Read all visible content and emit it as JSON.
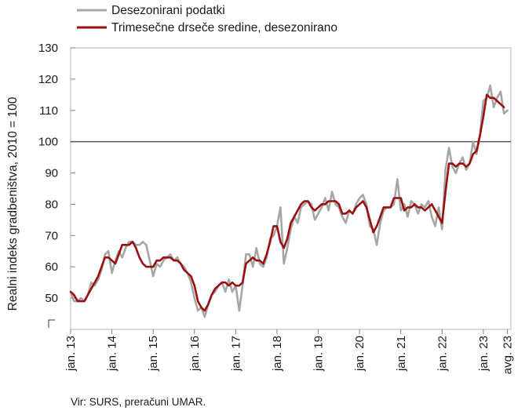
{
  "chart_data": {
    "type": "line",
    "ylabel": "Realni indeks gradbeništva, 2010 = 100",
    "ylim": [
      40,
      130
    ],
    "yticks": [
      50,
      60,
      70,
      80,
      90,
      100,
      110,
      120,
      130
    ],
    "x_tick_labels": [
      "jan. 13",
      "jan. 14",
      "jan. 15",
      "jan. 16",
      "jan. 17",
      "jan. 18",
      "jan. 19",
      "jan. 20",
      "jan. 21",
      "jan. 22",
      "jan. 23",
      "avg. 23"
    ],
    "x_tick_index": [
      0,
      12,
      24,
      36,
      48,
      60,
      72,
      84,
      96,
      108,
      120,
      127
    ],
    "reference_line": 100,
    "grid": false,
    "legend_position": "top-left",
    "source": "Vir: SURS, preračuni UMAR.",
    "series": [
      {
        "name": "Desezonirani podatki",
        "color": "#a6a6a6",
        "values": [
          52,
          49,
          49,
          50,
          49,
          51,
          55,
          54,
          56,
          59,
          64,
          65,
          58,
          62,
          65,
          63,
          66,
          68,
          68,
          67,
          67,
          68,
          67,
          62,
          57,
          61,
          60,
          62,
          63,
          64,
          62,
          63,
          61,
          60,
          58,
          55,
          50,
          46,
          47,
          44,
          48,
          51,
          52,
          54,
          55,
          52,
          56,
          52,
          54,
          46,
          54,
          64,
          64,
          60,
          66,
          61,
          60,
          63,
          69,
          70,
          73,
          79,
          61,
          66,
          72,
          76,
          74,
          79,
          80,
          81,
          80,
          75,
          77,
          79,
          82,
          78,
          84,
          80,
          79,
          76,
          74,
          78,
          77,
          80,
          82,
          83,
          80,
          73,
          72,
          67,
          74,
          78,
          79,
          79,
          80,
          88,
          78,
          80,
          76,
          81,
          80,
          77,
          80,
          79,
          81,
          76,
          73,
          79,
          72,
          91,
          98,
          92,
          90,
          93,
          95,
          91,
          93,
          100,
          96,
          102,
          113,
          114,
          118,
          111,
          114,
          116,
          109,
          110
        ]
      },
      {
        "name": "Trimesečne drseče sredine, desezonirano",
        "color": "#9b0f10",
        "values": [
          52,
          51,
          49,
          49,
          49,
          51,
          53,
          55,
          57,
          60,
          63,
          63,
          62,
          61,
          64,
          67,
          67,
          67,
          68,
          66,
          63,
          61,
          60,
          60,
          60,
          62,
          62,
          63,
          63,
          63,
          62,
          62,
          61,
          59,
          58,
          57,
          54,
          49,
          47,
          46,
          48,
          51,
          53,
          54,
          55,
          55,
          54,
          55,
          54,
          54,
          55,
          61,
          62,
          63,
          62,
          62,
          61,
          64,
          68,
          73,
          73,
          68,
          66,
          69,
          74,
          76,
          78,
          80,
          81,
          81,
          79,
          78,
          79,
          80,
          80,
          81,
          81,
          81,
          80,
          77,
          77,
          78,
          77,
          79,
          80,
          81,
          79,
          75,
          71,
          73,
          76,
          79,
          79,
          79,
          82,
          82,
          82,
          78,
          79,
          79,
          80,
          79,
          79,
          78,
          79,
          80,
          78,
          76,
          74,
          84,
          93,
          93,
          92,
          93,
          93,
          92,
          93,
          96,
          97,
          102,
          108,
          115,
          114,
          114,
          113,
          112,
          111
        ]
      }
    ]
  }
}
